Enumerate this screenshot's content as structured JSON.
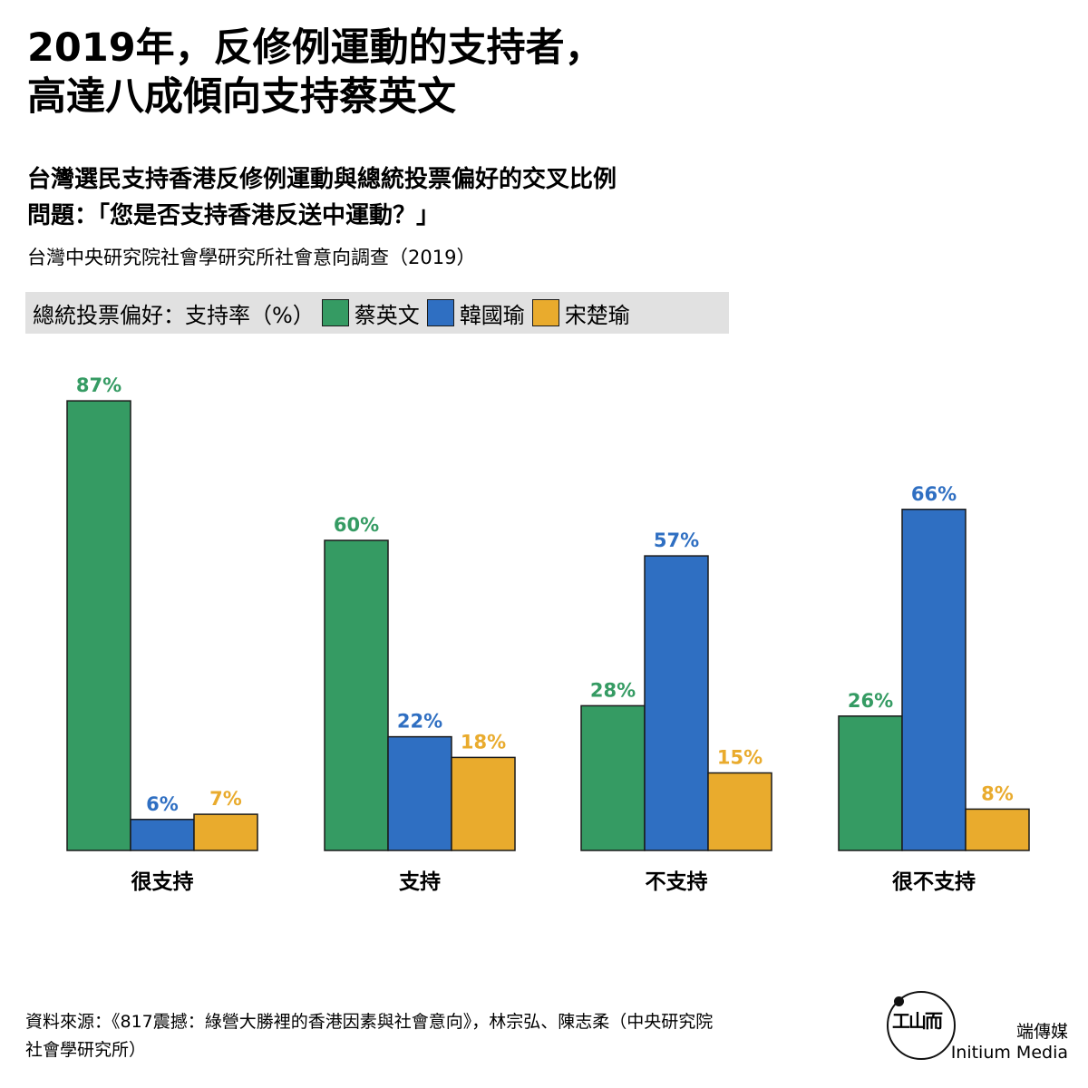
{
  "title_lines": [
    "2019年，反修例運動的支持者，",
    "高達八成傾向支持蔡英文"
  ],
  "subtitle_lines": [
    "台灣選民支持香港反修例運動與總統投票偏好的交叉比例",
    "問題：「您是否支持香港反送中運動？」"
  ],
  "survey_source": "台灣中央研究院社會學研究所社會意向調查（2019）",
  "legend": {
    "label": "總統投票偏好：支持率（%）",
    "items": [
      {
        "name": "蔡英文",
        "color": "#359b63"
      },
      {
        "name": "韓國瑜",
        "color": "#2f6fc2"
      },
      {
        "name": "宋楚瑜",
        "color": "#e9ab2d"
      }
    ]
  },
  "chart_data": {
    "type": "bar",
    "categories": [
      "很支持",
      "支持",
      "不支持",
      "很不支持"
    ],
    "series": [
      {
        "name": "蔡英文",
        "values": [
          87,
          60,
          28,
          26
        ],
        "color": "#359b63"
      },
      {
        "name": "韓國瑜",
        "values": [
          6,
          22,
          57,
          66
        ],
        "color": "#2f6fc2"
      },
      {
        "name": "宋楚瑜",
        "values": [
          7,
          18,
          15,
          8
        ],
        "color": "#e9ab2d"
      }
    ],
    "value_suffix": "%",
    "ylim": [
      0,
      100
    ],
    "grid": false,
    "legend_position": "top-left"
  },
  "footer": {
    "source_line1": "資料來源：《817震撼：綠營大勝裡的香港因素與社會意向》，林宗弘、陳志柔（中央研究院",
    "source_line2": "社會學研究所）",
    "brand_zh": "端傳媒",
    "brand_en": "Initium Media"
  }
}
